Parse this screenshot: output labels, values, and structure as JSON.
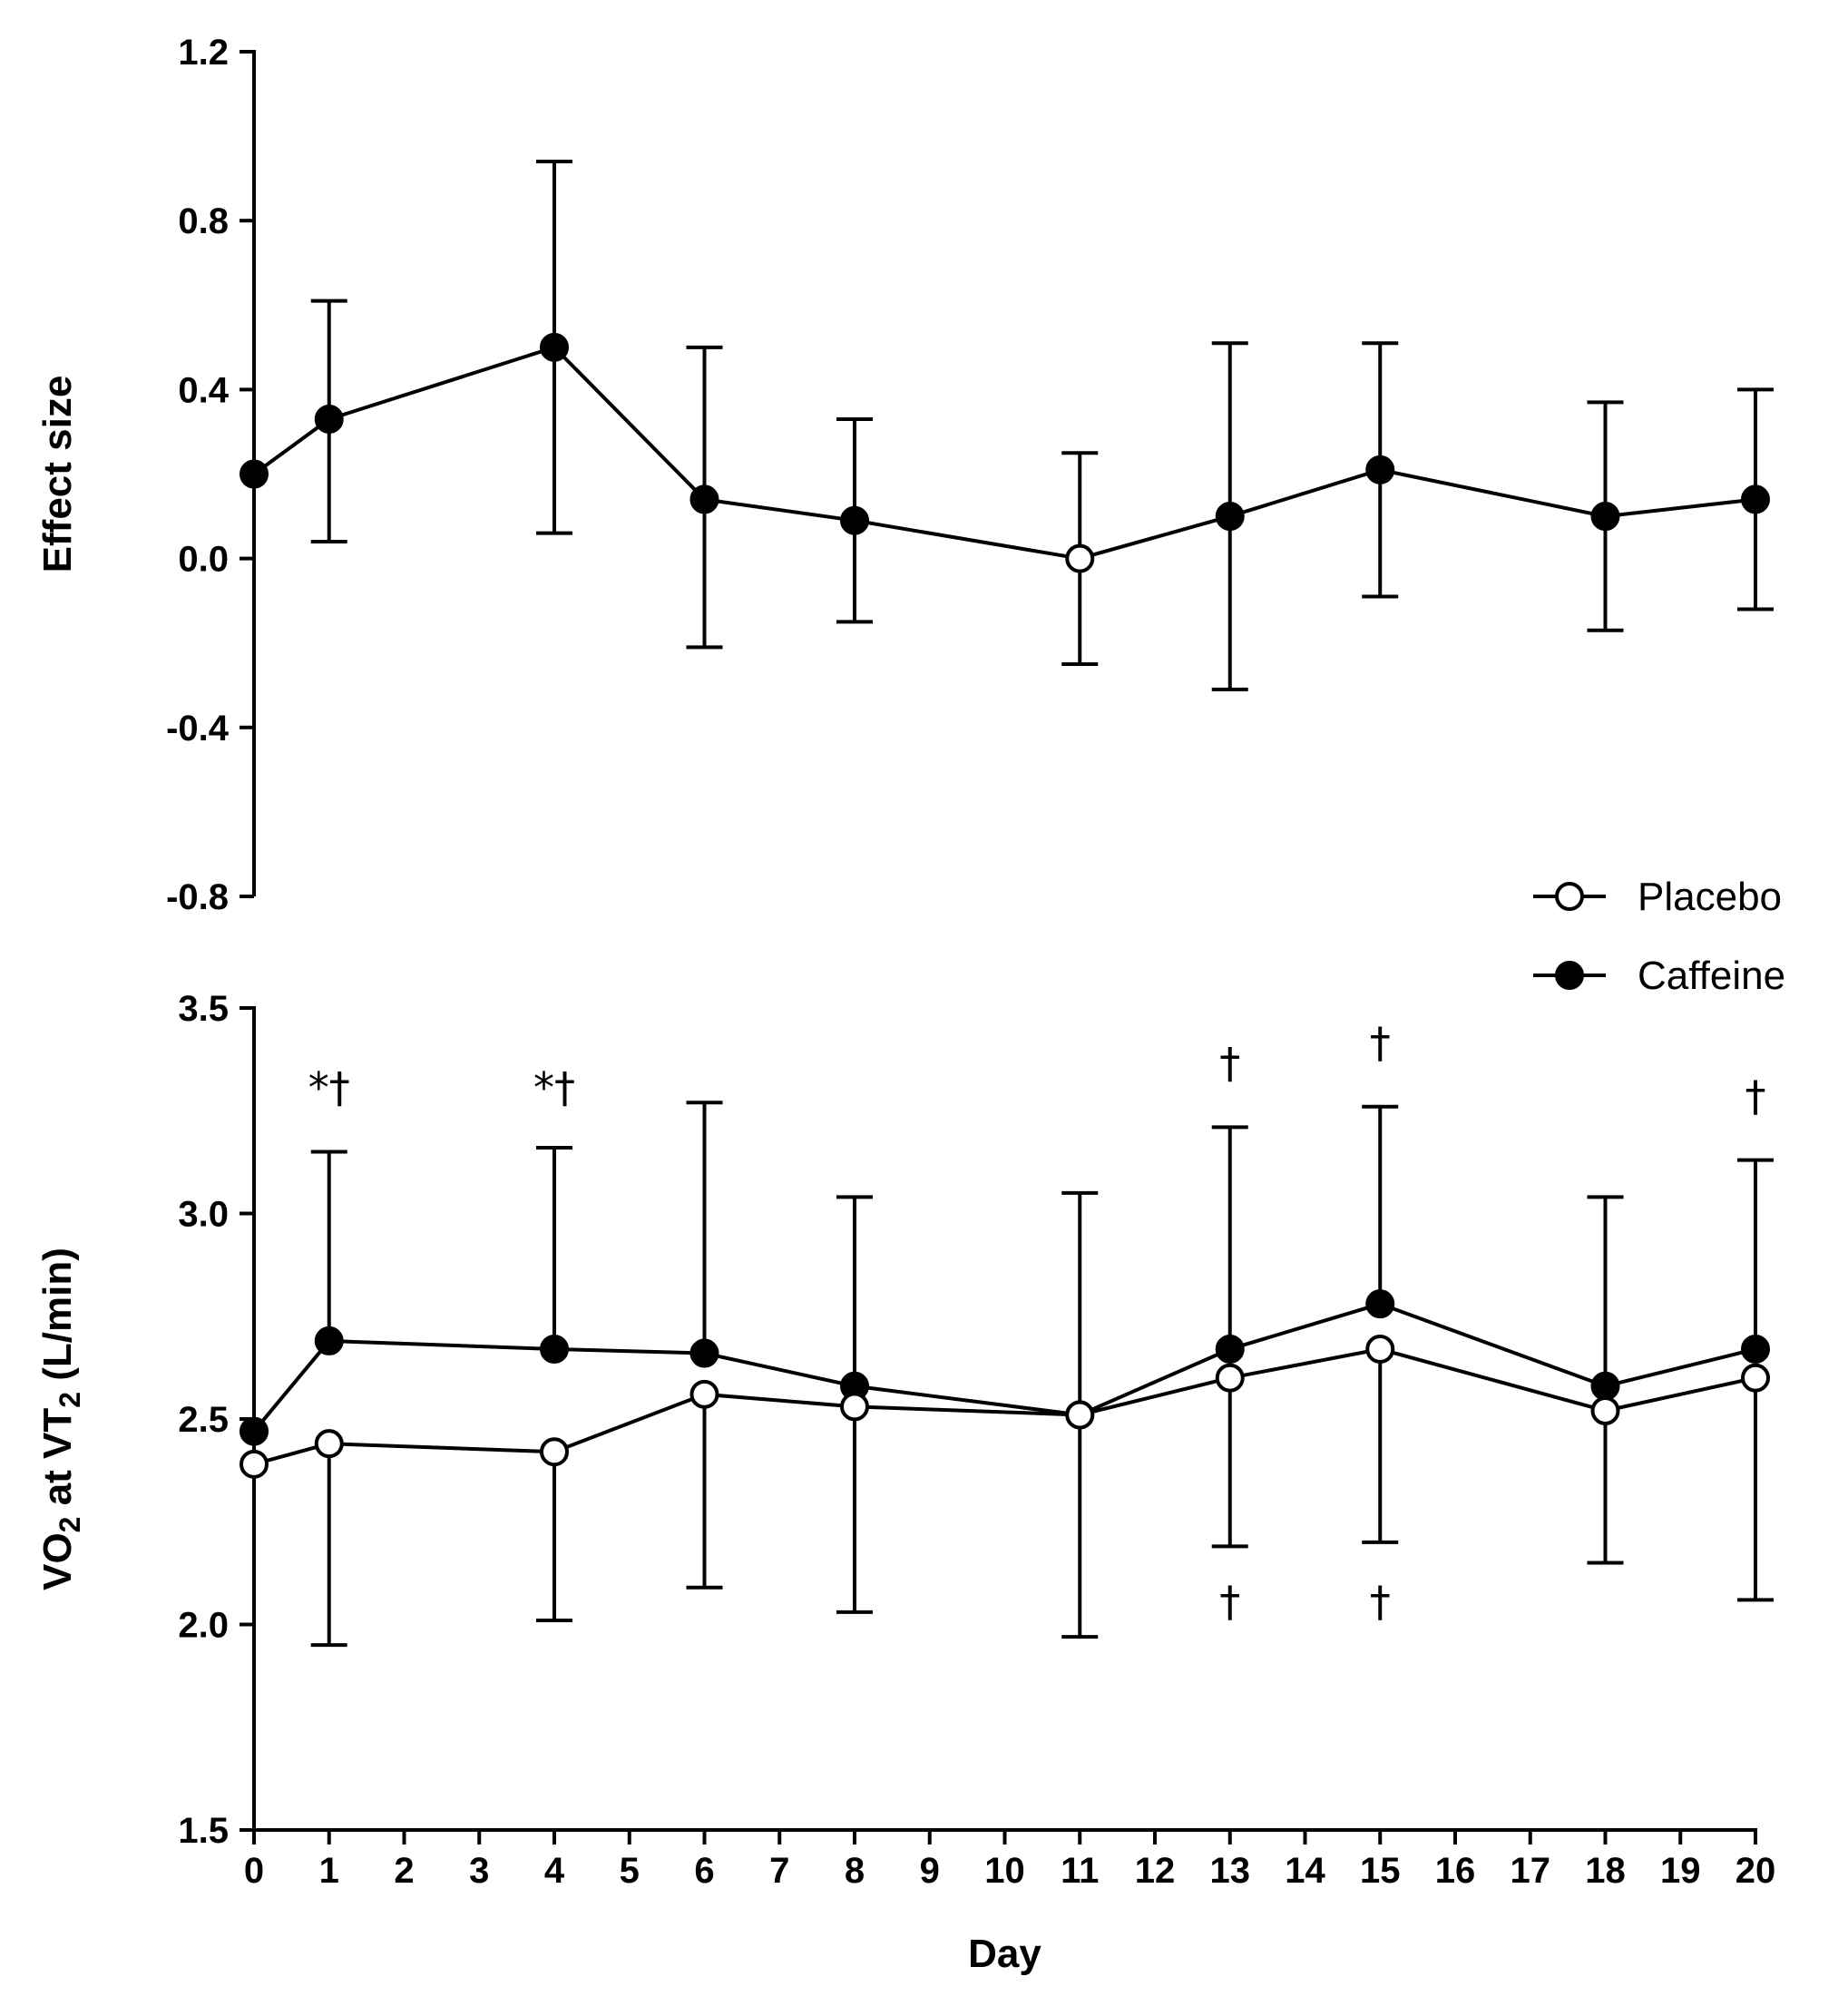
{
  "chart_data": [
    {
      "type": "line",
      "panel": "top",
      "title": "",
      "xlabel": "",
      "ylabel": "Effect size",
      "ylim": [
        -0.8,
        1.2
      ],
      "yticks": [
        "1.2",
        "0.8",
        "0.4",
        "0.0",
        "-0.4",
        "-0.8"
      ],
      "ytick_values": [
        1.2,
        0.8,
        0.4,
        0.0,
        -0.4,
        -0.8
      ],
      "grid": false,
      "points": [
        {
          "x": 0,
          "y": 0.2,
          "err_lo": null,
          "err_hi": null,
          "marker": "filled"
        },
        {
          "x": 1,
          "y": 0.33,
          "err_lo": 0.04,
          "err_hi": 0.61,
          "marker": "filled"
        },
        {
          "x": 4,
          "y": 0.5,
          "err_lo": 0.06,
          "err_hi": 0.94,
          "marker": "filled"
        },
        {
          "x": 6,
          "y": 0.14,
          "err_lo": -0.21,
          "err_hi": 0.5,
          "marker": "filled"
        },
        {
          "x": 8,
          "y": 0.09,
          "err_lo": -0.15,
          "err_hi": 0.33,
          "marker": "filled"
        },
        {
          "x": 11,
          "y": 0.0,
          "err_lo": -0.25,
          "err_hi": 0.25,
          "marker": "open"
        },
        {
          "x": 13,
          "y": 0.1,
          "err_lo": -0.31,
          "err_hi": 0.51,
          "marker": "filled"
        },
        {
          "x": 15,
          "y": 0.21,
          "err_lo": -0.09,
          "err_hi": 0.51,
          "marker": "filled"
        },
        {
          "x": 18,
          "y": 0.1,
          "err_lo": -0.17,
          "err_hi": 0.37,
          "marker": "filled"
        },
        {
          "x": 20,
          "y": 0.14,
          "err_lo": -0.12,
          "err_hi": 0.4,
          "marker": "filled"
        }
      ]
    },
    {
      "type": "line",
      "panel": "bottom",
      "title": "",
      "xlabel": "Day",
      "ylabel_main": "VO",
      "ylabel_sub1": "2",
      "ylabel_mid": " at VT",
      "ylabel_sub2": "2",
      "ylabel_end": " (L/min)",
      "ylim": [
        1.5,
        3.5
      ],
      "yticks": [
        "3.5",
        "3.0",
        "2.5",
        "2.0",
        "1.5"
      ],
      "ytick_values": [
        3.5,
        3.0,
        2.5,
        2.0,
        1.5
      ],
      "xlim": [
        0,
        20
      ],
      "xticks": [
        "0",
        "1",
        "2",
        "3",
        "4",
        "5",
        "6",
        "7",
        "8",
        "9",
        "10",
        "11",
        "12",
        "13",
        "14",
        "15",
        "16",
        "17",
        "18",
        "19",
        "20"
      ],
      "grid": false,
      "legend_position": "top-right",
      "series": [
        {
          "name": "Placebo",
          "marker": "open",
          "x": [
            0,
            1,
            4,
            6,
            8,
            11,
            13,
            15,
            18,
            20
          ],
          "y": [
            2.39,
            2.44,
            2.42,
            2.56,
            2.53,
            2.51,
            2.6,
            2.67,
            2.52,
            2.6
          ],
          "err_lo": [
            null,
            1.95,
            2.01,
            2.09,
            2.03,
            1.97,
            2.19,
            2.2,
            2.15,
            2.06
          ],
          "err_hi": [
            null,
            null,
            null,
            null,
            null,
            3.05,
            null,
            null,
            null,
            null
          ]
        },
        {
          "name": "Caffeine",
          "marker": "filled",
          "x": [
            0,
            1,
            4,
            6,
            8,
            11,
            13,
            15,
            18,
            20
          ],
          "y": [
            2.47,
            2.69,
            2.67,
            2.66,
            2.58,
            2.51,
            2.67,
            2.78,
            2.58,
            2.67
          ],
          "err_hi": [
            null,
            3.15,
            3.16,
            3.27,
            3.04,
            null,
            3.21,
            3.26,
            3.04,
            3.13
          ]
        }
      ],
      "annotations": [
        {
          "text": "*†",
          "x": 1,
          "y": 3.27
        },
        {
          "text": "*†",
          "x": 4,
          "y": 3.27
        },
        {
          "text": "†",
          "x": 13,
          "y": 3.33
        },
        {
          "text": "†",
          "x": 15,
          "y": 3.38
        },
        {
          "text": "†",
          "x": 20,
          "y": 3.25
        },
        {
          "text": "†",
          "x": 13,
          "y": 2.02
        },
        {
          "text": "†",
          "x": 15,
          "y": 2.02
        }
      ]
    }
  ]
}
